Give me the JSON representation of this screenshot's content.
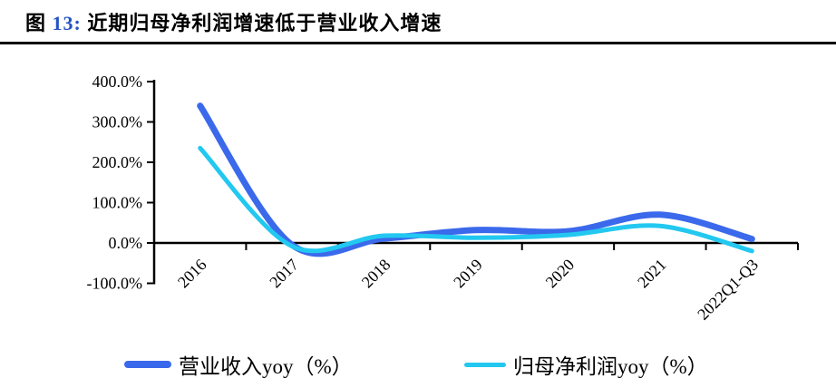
{
  "header": {
    "figure_prefix": "图",
    "figure_number": "13:",
    "title": "近期归母净利润增速低于营业收入增速",
    "number_color": "#2453c3"
  },
  "chart_data": {
    "type": "line",
    "smooth": true,
    "categories": [
      "2016",
      "2017",
      "2018",
      "2019",
      "2020",
      "2021",
      "2022Q1-Q3"
    ],
    "series": [
      {
        "name": "营业收入yoy（%）",
        "color": "#3b69eb",
        "stroke_width": 7,
        "values": [
          340,
          -5,
          11,
          32,
          29,
          70,
          10
        ]
      },
      {
        "name": "归母净利润yoy（%）",
        "color": "#23c8f0",
        "stroke_width": 5,
        "values": [
          235,
          -8,
          18,
          13,
          20,
          42,
          -20
        ]
      }
    ],
    "y_axis": {
      "tick_labels": [
        "400.0%",
        "300.0%",
        "200.0%",
        "100.0%",
        "0.0%",
        "-100.0%"
      ],
      "tick_values": [
        400,
        300,
        200,
        100,
        0,
        -100
      ],
      "min": -100,
      "max": 400
    },
    "x_axis": {
      "label_rotation_deg": -45
    },
    "grid": "off",
    "legend_position": "bottom",
    "axis_color": "#000000"
  }
}
